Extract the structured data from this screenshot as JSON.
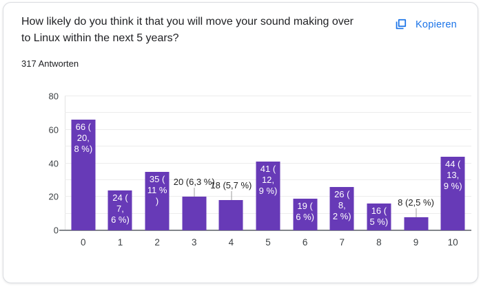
{
  "card": {
    "title": "How likely do you think it that you will move your sound making over to Linux within the next 5 years?",
    "responses_label": "317 Antworten",
    "copy_button": {
      "label": "Kopieren",
      "icon": "copy-icon",
      "color": "#1a73e8"
    }
  },
  "chart_data": {
    "type": "bar",
    "categories": [
      "0",
      "1",
      "2",
      "3",
      "4",
      "5",
      "6",
      "7",
      "8",
      "9",
      "10"
    ],
    "values": [
      66,
      24,
      35,
      20,
      18,
      41,
      19,
      26,
      16,
      8,
      44
    ],
    "bar_labels": [
      "66 (20,8 %)",
      "24 (7,6 %)",
      "35 (11 %)",
      "20 (6,3 %)",
      "18 (5,7 %)",
      "41 (12,9 %)",
      "19 (6 %)",
      "26 (8,2 %)",
      "16 (5 %)",
      "8 (2,5 %)",
      "44 (13,9 %)"
    ],
    "bar_label_lines": [
      [
        "66 (",
        "20,",
        "8 %)"
      ],
      [
        "24 (",
        "7,",
        "6 %)"
      ],
      [
        "35 (",
        "11 %",
        ")"
      ],
      [
        "20 (6,3 %)"
      ],
      [
        "18 (5,7 %)"
      ],
      [
        "41 (",
        "12,",
        "9 %)"
      ],
      [
        "19 (",
        "6 %)"
      ],
      [
        "26 (",
        "8,",
        "2 %)"
      ],
      [
        "16 (",
        "5 %)"
      ],
      [
        "8 (2,5 %)"
      ],
      [
        "44 (",
        "13,",
        "9 %)"
      ]
    ],
    "bar_label_placement": [
      "inside",
      "inside",
      "inside",
      "outside",
      "outside",
      "inside",
      "inside",
      "inside",
      "inside",
      "outside",
      "inside"
    ],
    "xlabel": "",
    "ylabel": "",
    "ylim": [
      0,
      80
    ],
    "yticks": [
      0,
      20,
      40,
      60,
      80
    ],
    "grid": true,
    "grid_step": 10,
    "legend": "none",
    "bar_color": "#673ab7",
    "inside_label_color": "#ffffff",
    "outside_label_color": "#212121"
  }
}
